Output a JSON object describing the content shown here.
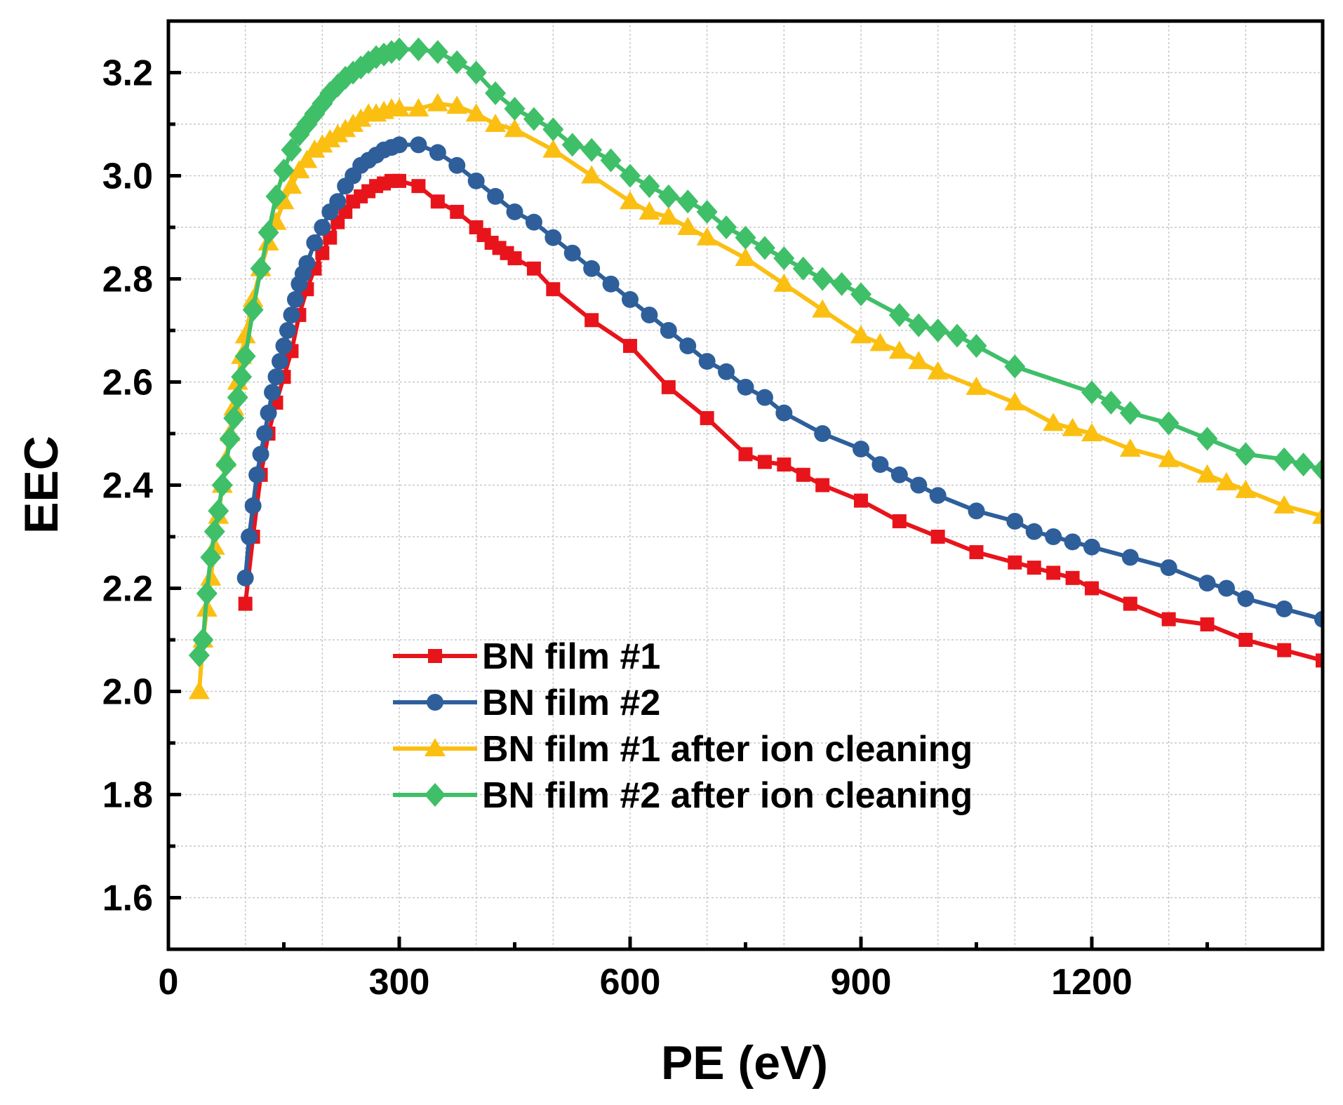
{
  "chart_data": {
    "type": "line",
    "title": "",
    "xlabel": "PE (eV)",
    "ylabel": "EEC",
    "xlim": [
      0,
      1500
    ],
    "ylim": [
      1.5,
      3.3
    ],
    "xticks": [
      0,
      300,
      600,
      900,
      1200
    ],
    "xtick_labels": [
      "0",
      "300",
      "600",
      "900",
      "1200"
    ],
    "yticks": [
      1.6,
      1.8,
      2.0,
      2.2,
      2.4,
      2.6,
      2.8,
      3.0,
      3.2
    ],
    "ytick_labels": [
      "1.6",
      "1.8",
      "2.0",
      "2.2",
      "2.4",
      "2.6",
      "2.8",
      "3.0",
      "3.2"
    ],
    "grid": true,
    "legend_position": "lower-center",
    "series": [
      {
        "name": "BN film #1",
        "color": "#e8141b",
        "marker": "square",
        "x": [
          100,
          110,
          120,
          130,
          140,
          150,
          160,
          170,
          180,
          190,
          200,
          210,
          220,
          230,
          240,
          250,
          260,
          270,
          280,
          290,
          300,
          325,
          350,
          375,
          400,
          410,
          420,
          430,
          440,
          450,
          475,
          500,
          550,
          600,
          650,
          700,
          750,
          775,
          800,
          825,
          850,
          900,
          950,
          1000,
          1050,
          1100,
          1125,
          1150,
          1175,
          1200,
          1250,
          1300,
          1350,
          1400,
          1450,
          1500
        ],
        "y": [
          2.17,
          2.3,
          2.42,
          2.5,
          2.56,
          2.61,
          2.66,
          2.73,
          2.78,
          2.82,
          2.85,
          2.88,
          2.91,
          2.93,
          2.95,
          2.96,
          2.97,
          2.98,
          2.985,
          2.99,
          2.99,
          2.98,
          2.95,
          2.93,
          2.9,
          2.885,
          2.87,
          2.86,
          2.85,
          2.84,
          2.82,
          2.78,
          2.72,
          2.67,
          2.59,
          2.53,
          2.46,
          2.445,
          2.44,
          2.42,
          2.4,
          2.37,
          2.33,
          2.3,
          2.27,
          2.25,
          2.24,
          2.23,
          2.22,
          2.2,
          2.17,
          2.14,
          2.13,
          2.1,
          2.08,
          2.06
        ]
      },
      {
        "name": "BN film #2",
        "color": "#2e5f9b",
        "marker": "circle",
        "x": [
          100,
          105,
          110,
          115,
          120,
          125,
          130,
          135,
          140,
          145,
          150,
          155,
          160,
          165,
          170,
          175,
          180,
          190,
          200,
          210,
          220,
          230,
          240,
          250,
          260,
          270,
          280,
          290,
          300,
          325,
          350,
          375,
          400,
          425,
          450,
          475,
          500,
          525,
          550,
          575,
          600,
          625,
          650,
          675,
          700,
          725,
          750,
          775,
          800,
          850,
          900,
          925,
          950,
          975,
          1000,
          1050,
          1100,
          1125,
          1150,
          1175,
          1200,
          1250,
          1300,
          1350,
          1375,
          1400,
          1450,
          1500
        ],
        "y": [
          2.22,
          2.3,
          2.36,
          2.42,
          2.46,
          2.5,
          2.54,
          2.58,
          2.61,
          2.64,
          2.67,
          2.7,
          2.73,
          2.76,
          2.79,
          2.81,
          2.83,
          2.87,
          2.9,
          2.93,
          2.95,
          2.98,
          3.0,
          3.02,
          3.03,
          3.04,
          3.05,
          3.055,
          3.06,
          3.06,
          3.045,
          3.02,
          2.99,
          2.96,
          2.93,
          2.91,
          2.88,
          2.85,
          2.82,
          2.79,
          2.76,
          2.73,
          2.7,
          2.67,
          2.64,
          2.62,
          2.59,
          2.57,
          2.54,
          2.5,
          2.47,
          2.44,
          2.42,
          2.4,
          2.38,
          2.35,
          2.33,
          2.31,
          2.3,
          2.29,
          2.28,
          2.26,
          2.24,
          2.21,
          2.2,
          2.18,
          2.16,
          2.14
        ]
      },
      {
        "name": "BN film #1 after ion cleaning",
        "color": "#fbbf12",
        "marker": "triangle",
        "x": [
          40,
          45,
          50,
          55,
          60,
          65,
          70,
          75,
          80,
          85,
          90,
          95,
          100,
          110,
          120,
          130,
          140,
          150,
          160,
          170,
          180,
          190,
          200,
          210,
          220,
          230,
          240,
          250,
          260,
          270,
          280,
          290,
          300,
          325,
          350,
          375,
          400,
          425,
          450,
          500,
          550,
          600,
          625,
          650,
          675,
          700,
          750,
          800,
          850,
          900,
          925,
          950,
          975,
          1000,
          1050,
          1100,
          1150,
          1175,
          1200,
          1250,
          1300,
          1350,
          1375,
          1400,
          1450,
          1500
        ],
        "y": [
          2.0,
          2.1,
          2.16,
          2.22,
          2.28,
          2.34,
          2.4,
          2.45,
          2.5,
          2.55,
          2.6,
          2.65,
          2.69,
          2.76,
          2.82,
          2.87,
          2.91,
          2.95,
          2.98,
          3.01,
          3.03,
          3.05,
          3.06,
          3.07,
          3.08,
          3.09,
          3.1,
          3.11,
          3.12,
          3.12,
          3.125,
          3.13,
          3.13,
          3.13,
          3.14,
          3.135,
          3.12,
          3.1,
          3.09,
          3.05,
          3.0,
          2.95,
          2.93,
          2.92,
          2.9,
          2.88,
          2.84,
          2.79,
          2.74,
          2.69,
          2.675,
          2.66,
          2.64,
          2.62,
          2.59,
          2.56,
          2.52,
          2.51,
          2.5,
          2.47,
          2.45,
          2.42,
          2.405,
          2.39,
          2.36,
          2.34
        ]
      },
      {
        "name": "BN film #2 after ion cleaning",
        "color": "#3fbf68",
        "marker": "diamond",
        "x": [
          40,
          45,
          50,
          55,
          60,
          65,
          70,
          75,
          80,
          85,
          90,
          95,
          100,
          110,
          120,
          130,
          140,
          150,
          160,
          170,
          180,
          190,
          200,
          210,
          220,
          230,
          240,
          250,
          260,
          270,
          280,
          290,
          300,
          325,
          350,
          375,
          400,
          425,
          450,
          475,
          500,
          525,
          550,
          575,
          600,
          625,
          650,
          675,
          700,
          725,
          750,
          775,
          800,
          825,
          850,
          875,
          900,
          950,
          975,
          1000,
          1025,
          1050,
          1100,
          1200,
          1225,
          1250,
          1300,
          1350,
          1400,
          1450,
          1475,
          1500
        ],
        "y": [
          2.07,
          2.1,
          2.19,
          2.26,
          2.31,
          2.35,
          2.4,
          2.44,
          2.49,
          2.53,
          2.57,
          2.61,
          2.65,
          2.74,
          2.82,
          2.89,
          2.96,
          3.01,
          3.05,
          3.08,
          3.1,
          3.12,
          3.14,
          3.16,
          3.175,
          3.19,
          3.2,
          3.21,
          3.22,
          3.23,
          3.235,
          3.24,
          3.245,
          3.245,
          3.24,
          3.22,
          3.2,
          3.16,
          3.13,
          3.11,
          3.09,
          3.06,
          3.05,
          3.03,
          3.0,
          2.98,
          2.96,
          2.95,
          2.93,
          2.9,
          2.88,
          2.86,
          2.84,
          2.82,
          2.8,
          2.79,
          2.77,
          2.73,
          2.71,
          2.7,
          2.69,
          2.67,
          2.63,
          2.58,
          2.56,
          2.54,
          2.52,
          2.49,
          2.46,
          2.45,
          2.44,
          2.43
        ]
      }
    ]
  }
}
